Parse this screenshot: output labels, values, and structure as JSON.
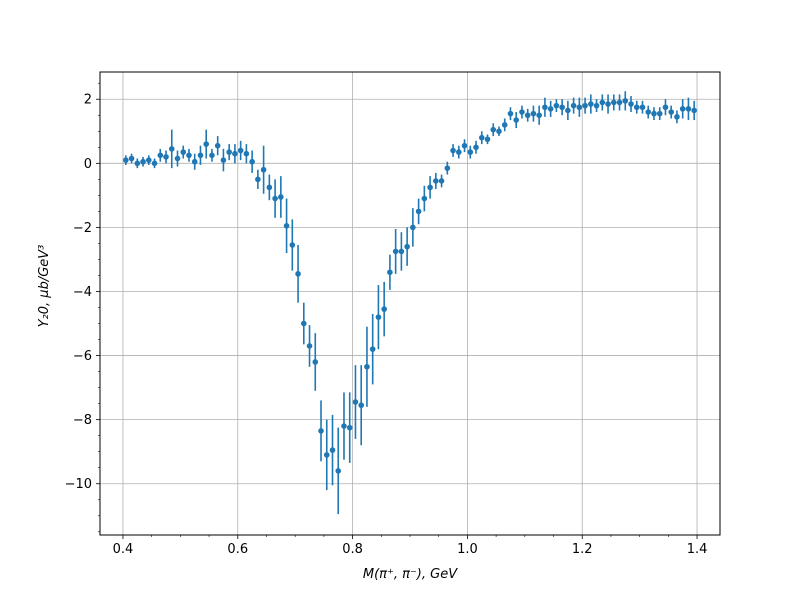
{
  "chart_data": {
    "type": "scatter",
    "title": "",
    "xlabel": "M(π⁺, π⁻), GeV",
    "ylabel": "Y₂0, μb/GeV³",
    "xlim": [
      0.36,
      1.44
    ],
    "ylim": [
      -11.6,
      2.85
    ],
    "xticks": [
      0.4,
      0.6,
      0.8,
      1.0,
      1.2,
      1.4
    ],
    "xtick_labels": [
      "0.4",
      "0.6",
      "0.8",
      "1.0",
      "1.2",
      "1.4"
    ],
    "yticks": [
      -10,
      -8,
      -6,
      -4,
      -2,
      0,
      2
    ],
    "ytick_labels": [
      "−10",
      "−8",
      "−6",
      "−4",
      "−2",
      "0",
      "2"
    ],
    "grid": true,
    "legend": "none",
    "color": "#1f77b4",
    "series": [
      {
        "marker": "circle",
        "errorbars": true,
        "x": [
          0.405,
          0.415,
          0.425,
          0.435,
          0.445,
          0.455,
          0.465,
          0.475,
          0.485,
          0.495,
          0.505,
          0.515,
          0.525,
          0.535,
          0.545,
          0.555,
          0.565,
          0.575,
          0.585,
          0.595,
          0.605,
          0.615,
          0.625,
          0.635,
          0.645,
          0.655,
          0.665,
          0.675,
          0.685,
          0.695,
          0.705,
          0.715,
          0.725,
          0.735,
          0.745,
          0.755,
          0.765,
          0.775,
          0.785,
          0.795,
          0.805,
          0.815,
          0.825,
          0.835,
          0.845,
          0.855,
          0.865,
          0.875,
          0.885,
          0.895,
          0.905,
          0.915,
          0.925,
          0.935,
          0.945,
          0.955,
          0.965,
          0.975,
          0.985,
          0.995,
          1.005,
          1.015,
          1.025,
          1.035,
          1.045,
          1.055,
          1.065,
          1.075,
          1.085,
          1.095,
          1.105,
          1.115,
          1.125,
          1.135,
          1.145,
          1.155,
          1.165,
          1.175,
          1.185,
          1.195,
          1.205,
          1.215,
          1.225,
          1.235,
          1.245,
          1.255,
          1.265,
          1.275,
          1.285,
          1.295,
          1.305,
          1.315,
          1.325,
          1.335,
          1.345,
          1.355,
          1.365,
          1.375,
          1.385,
          1.395
        ],
        "y": [
          0.1,
          0.15,
          0.0,
          0.05,
          0.1,
          0.0,
          0.25,
          0.2,
          0.45,
          0.15,
          0.35,
          0.25,
          0.05,
          0.25,
          0.6,
          0.25,
          0.55,
          0.1,
          0.35,
          0.3,
          0.4,
          0.3,
          0.05,
          -0.5,
          -0.2,
          -0.75,
          -1.1,
          -1.05,
          -1.95,
          -2.55,
          -3.45,
          -5.0,
          -5.7,
          -6.2,
          -8.35,
          -9.1,
          -8.95,
          -9.6,
          -8.2,
          -8.25,
          -7.45,
          -7.55,
          -6.35,
          -5.8,
          -4.8,
          -4.55,
          -3.4,
          -2.75,
          -2.75,
          -2.6,
          -2.0,
          -1.5,
          -1.1,
          -0.75,
          -0.55,
          -0.55,
          -0.15,
          0.4,
          0.35,
          0.55,
          0.35,
          0.5,
          0.8,
          0.75,
          1.05,
          1.0,
          1.2,
          1.55,
          1.35,
          1.6,
          1.5,
          1.55,
          1.5,
          1.75,
          1.7,
          1.8,
          1.75,
          1.65,
          1.8,
          1.75,
          1.8,
          1.85,
          1.8,
          1.9,
          1.85,
          1.9,
          1.9,
          1.95,
          1.85,
          1.75,
          1.75,
          1.6,
          1.55,
          1.55,
          1.75,
          1.6,
          1.45,
          1.7,
          1.7,
          1.65
        ],
        "yerr": [
          0.15,
          0.15,
          0.15,
          0.15,
          0.15,
          0.15,
          0.2,
          0.2,
          0.6,
          0.25,
          0.2,
          0.2,
          0.25,
          0.3,
          0.45,
          0.2,
          0.3,
          0.35,
          0.25,
          0.3,
          0.3,
          0.3,
          0.35,
          0.3,
          0.75,
          0.4,
          0.6,
          0.65,
          0.85,
          0.8,
          0.9,
          0.65,
          0.65,
          0.9,
          0.95,
          1.1,
          1.1,
          1.35,
          1.05,
          1.1,
          1.15,
          1.25,
          1.25,
          1.1,
          1.0,
          0.85,
          0.55,
          0.7,
          0.6,
          0.6,
          0.6,
          0.4,
          0.4,
          0.35,
          0.25,
          0.2,
          0.2,
          0.2,
          0.2,
          0.2,
          0.2,
          0.2,
          0.2,
          0.15,
          0.2,
          0.15,
          0.2,
          0.2,
          0.25,
          0.2,
          0.2,
          0.25,
          0.3,
          0.3,
          0.25,
          0.2,
          0.25,
          0.3,
          0.25,
          0.3,
          0.25,
          0.3,
          0.2,
          0.25,
          0.3,
          0.25,
          0.25,
          0.3,
          0.25,
          0.2,
          0.2,
          0.2,
          0.2,
          0.2,
          0.25,
          0.2,
          0.2,
          0.3,
          0.35,
          0.3
        ]
      }
    ]
  }
}
